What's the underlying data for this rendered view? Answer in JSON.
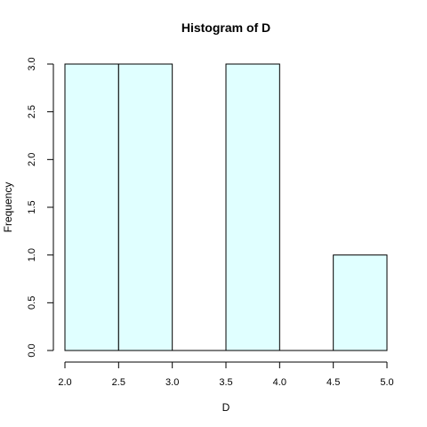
{
  "chart_data": {
    "type": "bar",
    "variant": "histogram",
    "title": "Histogram of D",
    "xlabel": "D",
    "ylabel": "Frequency",
    "bins": [
      {
        "start": 2.0,
        "end": 2.5,
        "count": 3
      },
      {
        "start": 2.5,
        "end": 3.0,
        "count": 3
      },
      {
        "start": 3.0,
        "end": 3.5,
        "count": 0
      },
      {
        "start": 3.5,
        "end": 4.0,
        "count": 3
      },
      {
        "start": 4.0,
        "end": 4.5,
        "count": 0
      },
      {
        "start": 4.5,
        "end": 5.0,
        "count": 1
      }
    ],
    "xlim": [
      2.0,
      5.0
    ],
    "ylim": [
      0,
      3
    ],
    "x_ticks": [
      "2.0",
      "2.5",
      "3.0",
      "3.5",
      "4.0",
      "4.5",
      "5.0"
    ],
    "y_ticks": [
      "0.0",
      "0.5",
      "1.0",
      "1.5",
      "2.0",
      "2.5",
      "3.0"
    ],
    "grid": false,
    "bar_fill_color": "#E0FFFF",
    "bar_stroke_color": "#000000"
  }
}
